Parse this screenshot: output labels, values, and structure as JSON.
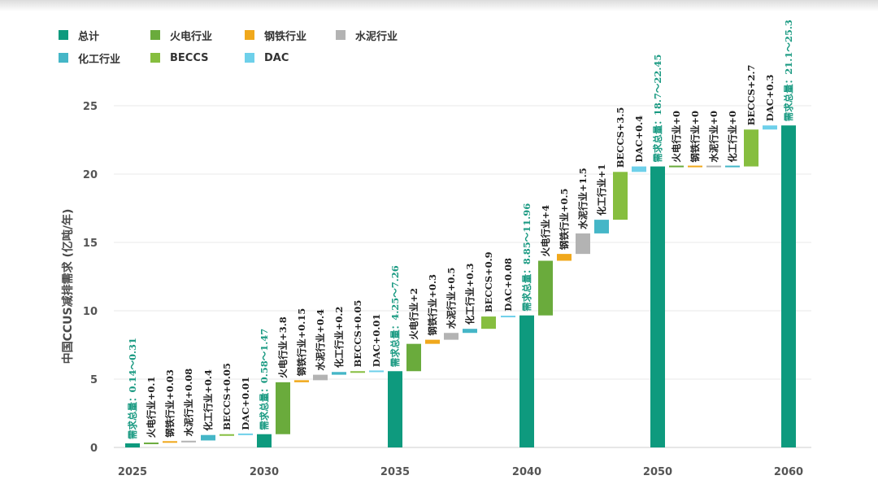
{
  "colors": {
    "总计": "#0e9a7e",
    "火电行业": "#6aab3c",
    "钢铁行业": "#f0a81c",
    "水泥行业": "#b3b3b3",
    "化工行业": "#45b6c7",
    "BECCS": "#86be3f",
    "DAC": "#6ed0ea"
  },
  "legend": [
    {
      "key": "总计",
      "label": "总计"
    },
    {
      "key": "火电行业",
      "label": "火电行业"
    },
    {
      "key": "钢铁行业",
      "label": "钢铁行业"
    },
    {
      "key": "水泥行业",
      "label": "水泥行业"
    },
    {
      "key": "化工行业",
      "label": "化工行业"
    },
    {
      "key": "BECCS",
      "label": "BECCS"
    },
    {
      "key": "DAC",
      "label": "DAC"
    }
  ],
  "chart_data": {
    "type": "bar",
    "subtype": "waterfall",
    "ylabel": "中国CCUS减排需求 (亿吨/年)",
    "ylim": [
      0,
      25
    ],
    "yticks": [
      "0",
      "5",
      "10",
      "15",
      "20",
      "25"
    ],
    "grid": true,
    "legend_position": "top-left",
    "x_tick_labels": [
      "2025",
      "2030",
      "2035",
      "2040",
      "2050",
      "2060"
    ],
    "bars": [
      {
        "series": "总计",
        "start": 0,
        "end": 0.3,
        "label": "需求总量：0.14～0.31"
      },
      {
        "series": "火电行业",
        "start": 0.3,
        "end": 0.4,
        "label": "火电行业+0.1"
      },
      {
        "series": "钢铁行业",
        "start": 0.4,
        "end": 0.43,
        "label": "钢铁行业+0.03"
      },
      {
        "series": "水泥行业",
        "start": 0.43,
        "end": 0.51,
        "label": "水泥行业+0.08"
      },
      {
        "series": "化工行业",
        "start": 0.51,
        "end": 0.91,
        "label": "化工行业+0.4"
      },
      {
        "series": "BECCS",
        "start": 0.91,
        "end": 0.96,
        "label": "BECCS+0.05"
      },
      {
        "series": "DAC",
        "start": 0.96,
        "end": 0.97,
        "label": "DAC+0.01"
      },
      {
        "series": "总计",
        "start": 0,
        "end": 0.97,
        "label": "需求总量：0.58～1.47"
      },
      {
        "series": "火电行业",
        "start": 0.97,
        "end": 4.77,
        "label": "火电行业+3.8"
      },
      {
        "series": "钢铁行业",
        "start": 4.77,
        "end": 4.92,
        "label": "钢铁行业+0.15"
      },
      {
        "series": "水泥行业",
        "start": 4.92,
        "end": 5.32,
        "label": "水泥行业+0.4"
      },
      {
        "series": "化工行业",
        "start": 5.32,
        "end": 5.52,
        "label": "化工行业+0.2"
      },
      {
        "series": "BECCS",
        "start": 5.52,
        "end": 5.57,
        "label": "BECCS+0.05"
      },
      {
        "series": "DAC",
        "start": 5.57,
        "end": 5.58,
        "label": "DAC+0.01"
      },
      {
        "series": "总计",
        "start": 0,
        "end": 5.58,
        "label": "需求总量：4.25～7.26"
      },
      {
        "series": "火电行业",
        "start": 5.58,
        "end": 7.58,
        "label": "火电行业+2"
      },
      {
        "series": "钢铁行业",
        "start": 7.58,
        "end": 7.88,
        "label": "钢铁行业+0.3"
      },
      {
        "series": "水泥行业",
        "start": 7.88,
        "end": 8.38,
        "label": "水泥行业+0.5"
      },
      {
        "series": "化工行业",
        "start": 8.38,
        "end": 8.68,
        "label": "化工行业+0.3"
      },
      {
        "series": "BECCS",
        "start": 8.68,
        "end": 9.58,
        "label": "BECCS+0.9"
      },
      {
        "series": "DAC",
        "start": 9.58,
        "end": 9.66,
        "label": "DAC+0.08"
      },
      {
        "series": "总计",
        "start": 0,
        "end": 9.66,
        "label": "需求总量：8.85～11.96"
      },
      {
        "series": "火电行业",
        "start": 9.66,
        "end": 13.66,
        "label": "火电行业+4"
      },
      {
        "series": "钢铁行业",
        "start": 13.66,
        "end": 14.16,
        "label": "钢铁行业+0.5"
      },
      {
        "series": "水泥行业",
        "start": 14.16,
        "end": 15.66,
        "label": "水泥行业+1.5"
      },
      {
        "series": "化工行业",
        "start": 15.66,
        "end": 16.66,
        "label": "化工行业+1"
      },
      {
        "series": "BECCS",
        "start": 16.66,
        "end": 20.16,
        "label": "BECCS+3.5"
      },
      {
        "series": "DAC",
        "start": 20.16,
        "end": 20.56,
        "label": "DAC+0.4"
      },
      {
        "series": "总计",
        "start": 0,
        "end": 20.56,
        "label": "需求总量：18.7～22.45"
      },
      {
        "series": "火电行业",
        "start": 20.56,
        "end": 20.56,
        "label": "火电行业+0"
      },
      {
        "series": "钢铁行业",
        "start": 20.56,
        "end": 20.56,
        "label": "钢铁行业+0"
      },
      {
        "series": "水泥行业",
        "start": 20.56,
        "end": 20.56,
        "label": "水泥行业+0"
      },
      {
        "series": "化工行业",
        "start": 20.56,
        "end": 20.56,
        "label": "化工行业+0"
      },
      {
        "series": "BECCS",
        "start": 20.56,
        "end": 23.26,
        "label": "BECCS+2.7"
      },
      {
        "series": "DAC",
        "start": 23.26,
        "end": 23.56,
        "label": "DAC+0.3"
      },
      {
        "series": "总计",
        "start": 0,
        "end": 23.56,
        "label": "需求总量：21.1～25.3"
      }
    ]
  }
}
